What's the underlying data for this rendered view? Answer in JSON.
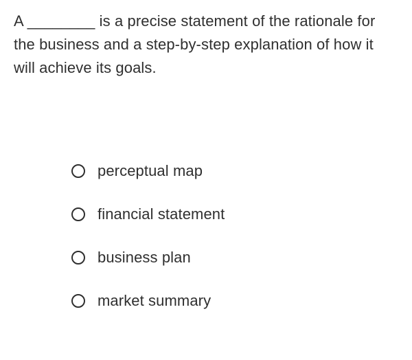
{
  "question": {
    "text": "A ________ is a precise statement of the rationale for the business and a step-by-step explanation of how it will achieve its goals.",
    "text_color": "#2f2f2f",
    "fontsize": 22
  },
  "options": [
    {
      "label": "perceptual map"
    },
    {
      "label": "financial statement"
    },
    {
      "label": "business plan"
    },
    {
      "label": "market summary"
    }
  ],
  "styling": {
    "background_color": "#ffffff",
    "radio_border_color": "#2f2f2f",
    "radio_size": 20,
    "option_fontsize": 22,
    "option_color": "#2f2f2f",
    "options_gap": 37,
    "options_top_margin": 120,
    "options_left_indent": 84
  }
}
